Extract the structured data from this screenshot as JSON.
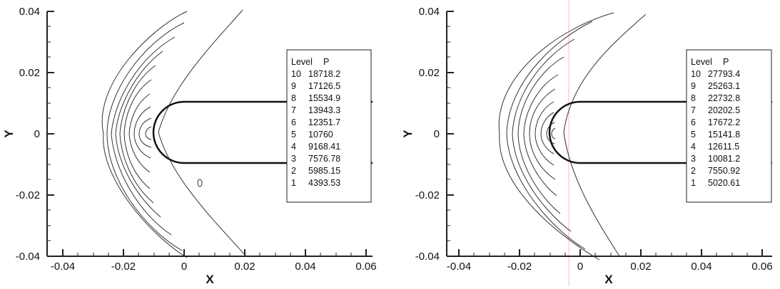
{
  "charts": [
    {
      "xlabel": "X",
      "ylabel": "Y",
      "xticks": [
        "-0.04",
        "-0.02",
        "0",
        "0.02",
        "0.04",
        "0.06"
      ],
      "yticks": [
        "0.04",
        "0.02",
        "0",
        "-0.02",
        "-0.04"
      ],
      "legend": {
        "header_level": "Level",
        "header_value": "P",
        "rows": [
          {
            "level": "10",
            "value": "18718.2"
          },
          {
            "level": "9",
            "value": "17126.5"
          },
          {
            "level": "8",
            "value": "15534.9"
          },
          {
            "level": "7",
            "value": "13943.3"
          },
          {
            "level": "6",
            "value": "12351.7"
          },
          {
            "level": "5",
            "value": "10760"
          },
          {
            "level": "4",
            "value": "9168.41"
          },
          {
            "level": "3",
            "value": "7576.78"
          },
          {
            "level": "2",
            "value": "5985.15"
          },
          {
            "level": "1",
            "value": "4393.53"
          }
        ]
      }
    },
    {
      "xlabel": "X",
      "ylabel": "Y",
      "xticks": [
        "-0.04",
        "-0.02",
        "0",
        "0.02",
        "0.04",
        "0.06"
      ],
      "yticks": [
        "0.04",
        "0.02",
        "0",
        "-0.02",
        "-0.04"
      ],
      "legend": {
        "header_level": "Level",
        "header_value": "P",
        "rows": [
          {
            "level": "10",
            "value": "27793.4"
          },
          {
            "level": "9",
            "value": "25263.1"
          },
          {
            "level": "8",
            "value": "22732.8"
          },
          {
            "level": "7",
            "value": "20202.5"
          },
          {
            "level": "6",
            "value": "17672.2"
          },
          {
            "level": "5",
            "value": "15141.8"
          },
          {
            "level": "4",
            "value": "12611.5"
          },
          {
            "level": "3",
            "value": "10081.2"
          },
          {
            "level": "2",
            "value": "7550.92"
          },
          {
            "level": "1",
            "value": "5020.61"
          }
        ]
      }
    }
  ],
  "chart_data": [
    {
      "type": "contour",
      "xlabel": "X",
      "ylabel": "Y",
      "xlim": [
        -0.045,
        0.062
      ],
      "ylim": [
        -0.04,
        0.04
      ],
      "body": {
        "shape": "blunt-nose cylinder",
        "nose_x": -0.01,
        "radius": 0.01,
        "extends_to_x": 0.062
      },
      "levels": [
        {
          "level": 10,
          "P": 18718.2
        },
        {
          "level": 9,
          "P": 17126.5
        },
        {
          "level": 8,
          "P": 15534.9
        },
        {
          "level": 7,
          "P": 13943.3
        },
        {
          "level": 6,
          "P": 12351.7
        },
        {
          "level": 5,
          "P": 10760
        },
        {
          "level": 4,
          "P": 9168.41
        },
        {
          "level": 3,
          "P": 7576.78
        },
        {
          "level": 2,
          "P": 5985.15
        },
        {
          "level": 1,
          "P": 4393.53
        }
      ]
    },
    {
      "type": "contour",
      "xlabel": "X",
      "ylabel": "Y",
      "xlim": [
        -0.045,
        0.062
      ],
      "ylim": [
        -0.04,
        0.04
      ],
      "body": {
        "shape": "blunt-nose cylinder",
        "nose_x": -0.01,
        "radius": 0.01,
        "extends_to_x": 0.062
      },
      "levels": [
        {
          "level": 10,
          "P": 27793.4
        },
        {
          "level": 9,
          "P": 25263.1
        },
        {
          "level": 8,
          "P": 22732.8
        },
        {
          "level": 7,
          "P": 20202.5
        },
        {
          "level": 6,
          "P": 17672.2
        },
        {
          "level": 5,
          "P": 15141.8
        },
        {
          "level": 4,
          "P": 12611.5
        },
        {
          "level": 3,
          "P": 10081.2
        },
        {
          "level": 2,
          "P": 7550.92
        },
        {
          "level": 1,
          "P": 5020.61
        }
      ]
    }
  ]
}
